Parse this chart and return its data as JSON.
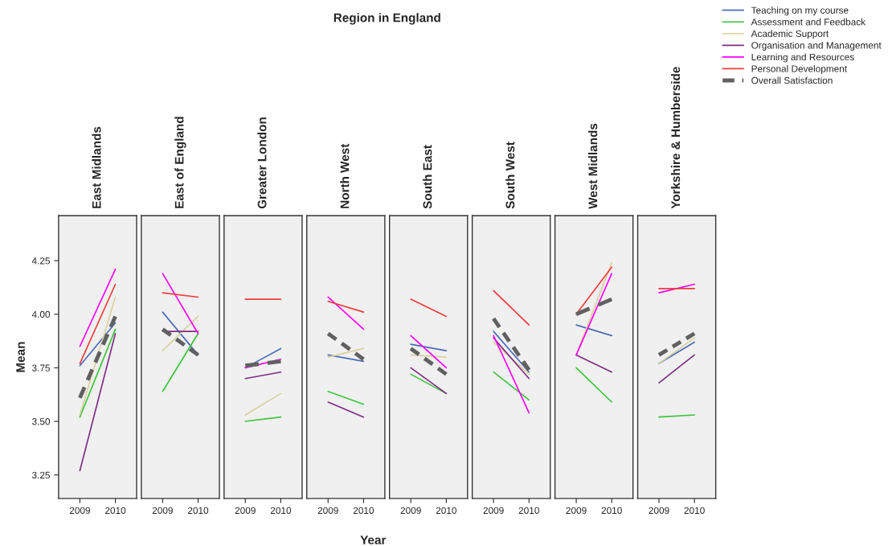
{
  "chart_data": [
    {
      "type": "line",
      "title": "East Midlands",
      "annotations": [
        "Region in England"
      ],
      "ylabel": "Mean",
      "legend": "top right",
      "categories": [
        "2009",
        "2010"
      ],
      "ylim": [
        3.14,
        4.46
      ],
      "yticks": [
        {
          "value": 3.25,
          "label": "3.25"
        },
        {
          "value": 3.5,
          "label": "3.50"
        },
        {
          "value": 3.75,
          "label": "3.75"
        },
        {
          "value": 4.0,
          "label": "4.00"
        },
        {
          "value": 4.25,
          "label": "4.25"
        }
      ],
      "series": [
        {
          "name": "Teaching on my course",
          "color": "#4c6cb8",
          "values": [
            3.76,
            3.96
          ]
        },
        {
          "name": "Assessment and Feedback",
          "color": "#3cc43c",
          "values": [
            3.52,
            3.93
          ]
        },
        {
          "name": "Academic Support",
          "color": "#d8d0a0",
          "values": [
            3.53,
            4.08
          ]
        },
        {
          "name": "Organisation and Management",
          "color": "#7e2e84",
          "values": [
            3.27,
            3.91
          ]
        },
        {
          "name": "Learning and Resources",
          "color": "#ff00ff",
          "values": [
            3.85,
            4.21
          ]
        },
        {
          "name": "Personal Development",
          "color": "#f03c3c",
          "values": [
            3.77,
            4.14
          ]
        },
        {
          "name": "Overall Satisfaction",
          "color": "#606060",
          "line_style": "dashed",
          "values": [
            3.61,
            3.99
          ]
        }
      ]
    },
    {
      "type": "line",
      "title": "East of England",
      "tick_labels": "x",
      "categories": [
        "2009",
        "2010"
      ],
      "ylim": [
        3.14,
        4.46
      ],
      "series": [
        {
          "color": "#4c6cb8",
          "values": [
            4.01,
            3.81
          ]
        },
        {
          "color": "#3cc43c",
          "values": [
            3.64,
            3.91
          ]
        },
        {
          "color": "#d8d0a0",
          "values": [
            3.83,
            3.99
          ]
        },
        {
          "color": "#7e2e84",
          "values": [
            3.92,
            3.92
          ]
        },
        {
          "color": "#ff00ff",
          "values": [
            4.19,
            3.91
          ]
        },
        {
          "color": "#f03c3c",
          "values": [
            4.1,
            4.08
          ]
        },
        {
          "color": "#606060",
          "line_style": "dashed",
          "values": [
            3.93,
            3.81
          ]
        }
      ]
    },
    {
      "type": "line",
      "title": "Greater London",
      "tick_labels": "x",
      "categories": [
        "2009",
        "2010"
      ],
      "ylim": [
        3.14,
        4.46
      ],
      "series": [
        {
          "color": "#4c6cb8",
          "values": [
            3.75,
            3.84
          ]
        },
        {
          "color": "#3cc43c",
          "values": [
            3.5,
            3.52
          ]
        },
        {
          "color": "#d8d0a0",
          "values": [
            3.53,
            3.63
          ]
        },
        {
          "color": "#7e2e84",
          "values": [
            3.7,
            3.73
          ]
        },
        {
          "color": "#ff00ff",
          "values": [
            3.75,
            3.79
          ]
        },
        {
          "color": "#f03c3c",
          "values": [
            4.07,
            4.07
          ]
        },
        {
          "color": "#606060",
          "line_style": "dashed",
          "values": [
            3.76,
            3.78
          ]
        }
      ]
    },
    {
      "type": "line",
      "title": "North West",
      "xlabel": "Year",
      "tick_labels": "x",
      "categories": [
        "2009",
        "2010"
      ],
      "ylim": [
        3.14,
        4.46
      ],
      "series": [
        {
          "color": "#4c6cb8",
          "values": [
            3.81,
            3.78
          ]
        },
        {
          "color": "#3cc43c",
          "values": [
            3.64,
            3.58
          ]
        },
        {
          "color": "#d8d0a0",
          "values": [
            3.8,
            3.84
          ]
        },
        {
          "color": "#7e2e84",
          "values": [
            3.59,
            3.52
          ]
        },
        {
          "color": "#ff00ff",
          "values": [
            4.08,
            3.93
          ]
        },
        {
          "color": "#f03c3c",
          "values": [
            4.06,
            4.01
          ]
        },
        {
          "color": "#606060",
          "line_style": "dashed",
          "values": [
            3.91,
            3.79
          ]
        }
      ]
    },
    {
      "type": "line",
      "title": "South East",
      "tick_labels": "x",
      "categories": [
        "2009",
        "2010"
      ],
      "ylim": [
        3.14,
        4.46
      ],
      "series": [
        {
          "color": "#4c6cb8",
          "values": [
            3.86,
            3.83
          ]
        },
        {
          "color": "#3cc43c",
          "values": [
            3.72,
            3.63
          ]
        },
        {
          "color": "#d8d0a0",
          "values": [
            3.81,
            3.8
          ]
        },
        {
          "color": "#7e2e84",
          "values": [
            3.75,
            3.63
          ]
        },
        {
          "color": "#ff00ff",
          "values": [
            3.9,
            3.75
          ]
        },
        {
          "color": "#f03c3c",
          "values": [
            4.07,
            3.99
          ]
        },
        {
          "color": "#606060",
          "line_style": "dashed",
          "values": [
            3.84,
            3.72
          ]
        }
      ]
    },
    {
      "type": "line",
      "title": "South West",
      "tick_labels": "x",
      "categories": [
        "2009",
        "2010"
      ],
      "ylim": [
        3.14,
        4.46
      ],
      "series": [
        {
          "color": "#4c6cb8",
          "values": [
            3.92,
            3.73
          ]
        },
        {
          "color": "#3cc43c",
          "values": [
            3.73,
            3.6
          ]
        },
        {
          "color": "#d8d0a0",
          "values": [
            3.87,
            3.72
          ]
        },
        {
          "color": "#7e2e84",
          "values": [
            3.89,
            3.7
          ]
        },
        {
          "color": "#ff00ff",
          "values": [
            3.9,
            3.54
          ]
        },
        {
          "color": "#f03c3c",
          "values": [
            4.11,
            3.95
          ]
        },
        {
          "color": "#606060",
          "line_style": "dashed",
          "values": [
            3.98,
            3.74
          ]
        }
      ]
    },
    {
      "type": "line",
      "title": "West Midlands",
      "tick_labels": "x",
      "categories": [
        "2009",
        "2010"
      ],
      "ylim": [
        3.14,
        4.46
      ],
      "series": [
        {
          "color": "#4c6cb8",
          "values": [
            3.95,
            3.9
          ]
        },
        {
          "color": "#3cc43c",
          "values": [
            3.75,
            3.59
          ]
        },
        {
          "color": "#d8d0a0",
          "values": [
            3.81,
            4.24
          ]
        },
        {
          "color": "#7e2e84",
          "values": [
            3.81,
            3.73
          ]
        },
        {
          "color": "#ff00ff",
          "values": [
            3.81,
            4.19
          ]
        },
        {
          "color": "#f03c3c",
          "values": [
            4.0,
            4.22
          ]
        },
        {
          "color": "#606060",
          "line_style": "dashed",
          "values": [
            4.0,
            4.07
          ]
        }
      ]
    },
    {
      "type": "line",
      "title": "Yorkshire & Humberside",
      "tick_labels": "x",
      "categories": [
        "2009",
        "2010"
      ],
      "ylim": [
        3.14,
        4.46
      ],
      "series": [
        {
          "color": "#4c6cb8",
          "values": [
            3.77,
            3.87
          ]
        },
        {
          "color": "#3cc43c",
          "values": [
            3.52,
            3.53
          ]
        },
        {
          "color": "#d8d0a0",
          "values": [
            3.77,
            3.89
          ]
        },
        {
          "color": "#7e2e84",
          "values": [
            3.68,
            3.81
          ]
        },
        {
          "color": "#ff00ff",
          "values": [
            4.1,
            4.14
          ]
        },
        {
          "color": "#f03c3c",
          "values": [
            4.12,
            4.12
          ]
        },
        {
          "color": "#606060",
          "line_style": "dashed",
          "values": [
            3.81,
            3.91
          ]
        }
      ]
    }
  ]
}
